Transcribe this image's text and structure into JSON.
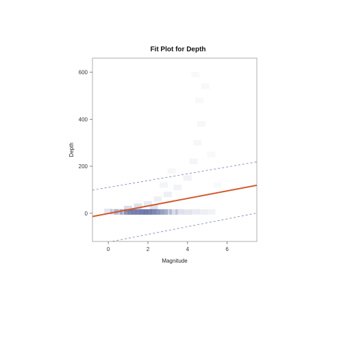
{
  "chart_data": {
    "type": "scatter",
    "title": "Fit Plot for Depth",
    "xlabel": "Magnitude",
    "ylabel": "Depth",
    "xlim": [
      -0.8,
      7.5
    ],
    "ylim": [
      -120,
      660
    ],
    "x_ticks": [
      0,
      2,
      4,
      6
    ],
    "y_ticks": [
      0,
      200,
      400,
      600
    ],
    "grid": false,
    "legend": "none",
    "fit_line": {
      "slope": 16.0,
      "intercept": -1.0
    },
    "prediction_band": {
      "upper": {
        "slope": 14.5,
        "intercept": 110
      },
      "lower": {
        "slope": 16.5,
        "intercept": -123
      }
    },
    "density_points": [
      {
        "x": 0.0,
        "y": 8,
        "w": 0.25
      },
      {
        "x": 0.3,
        "y": 6,
        "w": 0.35
      },
      {
        "x": 0.5,
        "y": 6,
        "w": 0.5
      },
      {
        "x": 0.8,
        "y": 5,
        "w": 0.6
      },
      {
        "x": 1.0,
        "y": 6,
        "w": 0.75
      },
      {
        "x": 1.2,
        "y": 5,
        "w": 0.8
      },
      {
        "x": 1.4,
        "y": 6,
        "w": 0.85
      },
      {
        "x": 1.6,
        "y": 5,
        "w": 0.8
      },
      {
        "x": 1.8,
        "y": 6,
        "w": 0.9
      },
      {
        "x": 2.0,
        "y": 5,
        "w": 0.85
      },
      {
        "x": 2.2,
        "y": 6,
        "w": 0.8
      },
      {
        "x": 2.4,
        "y": 5,
        "w": 0.7
      },
      {
        "x": 2.6,
        "y": 6,
        "w": 0.6
      },
      {
        "x": 2.8,
        "y": 5,
        "w": 0.5
      },
      {
        "x": 3.0,
        "y": 6,
        "w": 0.45
      },
      {
        "x": 3.3,
        "y": 5,
        "w": 0.35
      },
      {
        "x": 3.6,
        "y": 6,
        "w": 0.3
      },
      {
        "x": 4.0,
        "y": 5,
        "w": 0.25
      },
      {
        "x": 4.4,
        "y": 6,
        "w": 0.2
      },
      {
        "x": 4.8,
        "y": 5,
        "w": 0.15
      },
      {
        "x": 5.2,
        "y": 6,
        "w": 0.12
      },
      {
        "x": 2.0,
        "y": 40,
        "w": 0.2
      },
      {
        "x": 2.5,
        "y": 60,
        "w": 0.15
      },
      {
        "x": 3.0,
        "y": 80,
        "w": 0.15
      },
      {
        "x": 3.5,
        "y": 110,
        "w": 0.12
      },
      {
        "x": 4.0,
        "y": 150,
        "w": 0.12
      },
      {
        "x": 4.3,
        "y": 220,
        "w": 0.1
      },
      {
        "x": 4.5,
        "y": 300,
        "w": 0.08
      },
      {
        "x": 4.7,
        "y": 380,
        "w": 0.08
      },
      {
        "x": 4.6,
        "y": 480,
        "w": 0.07
      },
      {
        "x": 4.9,
        "y": 540,
        "w": 0.07
      },
      {
        "x": 4.4,
        "y": 590,
        "w": 0.06
      },
      {
        "x": 3.2,
        "y": 180,
        "w": 0.08
      },
      {
        "x": 2.8,
        "y": 120,
        "w": 0.1
      },
      {
        "x": 5.2,
        "y": 250,
        "w": 0.06
      },
      {
        "x": 5.5,
        "y": 120,
        "w": 0.06
      },
      {
        "x": 1.5,
        "y": 30,
        "w": 0.3
      },
      {
        "x": 1.0,
        "y": 20,
        "w": 0.35
      },
      {
        "x": 2.3,
        "y": 25,
        "w": 0.3
      }
    ],
    "colors": {
      "fit_line": "#d2592b",
      "band": "#8a93b8",
      "density": "#3b4a8c",
      "frame": "#999999"
    }
  }
}
